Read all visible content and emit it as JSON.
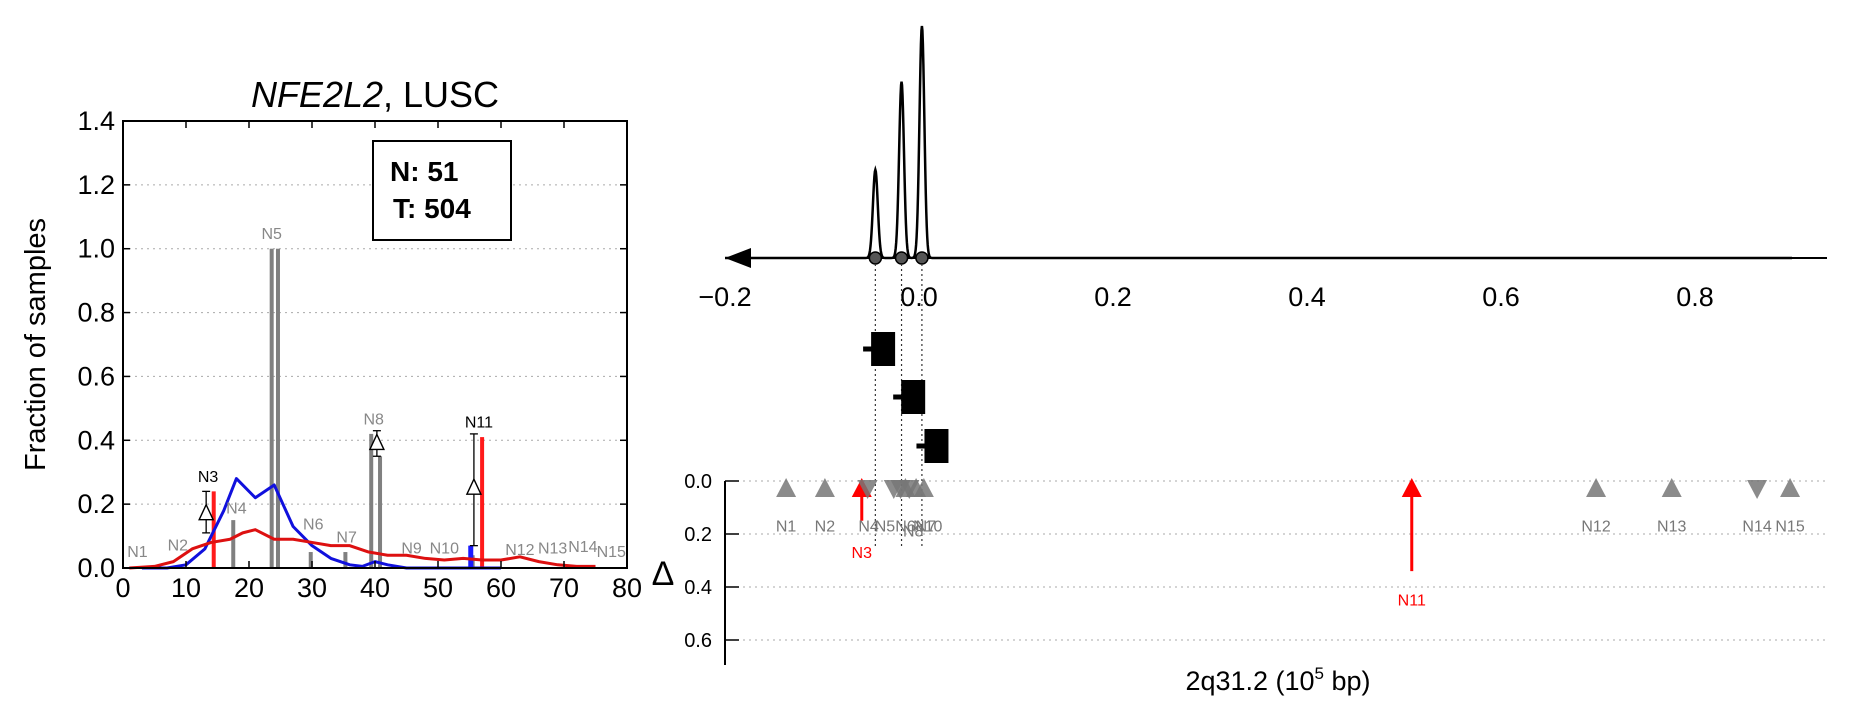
{
  "chart_data": [
    {
      "type": "bar",
      "title_italic": "NFE2L2",
      "title_rest": ", LUSC",
      "ylabel": "Fraction of samples",
      "xlabel": "",
      "xlim": [
        0,
        80
      ],
      "ylim": [
        0,
        1.4
      ],
      "xticks": [
        "0",
        "10",
        "20",
        "30",
        "40",
        "50",
        "60",
        "70",
        "80"
      ],
      "yticks": [
        "0.0",
        "0.2",
        "0.4",
        "0.6",
        "0.8",
        "1.0",
        "1.2",
        "1.4"
      ],
      "grid": "horizontal dotted",
      "legend_box": {
        "line1": "N: 51",
        "line2": "T: 504"
      },
      "bars": [
        {
          "x": 17.5,
          "value": 0.15
        },
        {
          "x": 23.6,
          "value": 1.0
        },
        {
          "x": 24.6,
          "value": 1.0
        },
        {
          "x": 29.8,
          "value": 0.05
        },
        {
          "x": 35.3,
          "value": 0.05
        },
        {
          "x": 39.4,
          "value": 0.42
        },
        {
          "x": 40.8,
          "value": 0.35
        },
        {
          "x": 55.5,
          "value": 0.04
        }
      ],
      "red_bars": [
        {
          "x": 14.4,
          "value": 0.24
        },
        {
          "x": 57.0,
          "value": 0.41
        }
      ],
      "blue_bars": [
        {
          "x": 55.2,
          "value": 0.07
        }
      ],
      "deltas": [
        {
          "x": 13.2,
          "y": 0.17,
          "err": [
            0.11,
            0.24
          ]
        },
        {
          "x": 40.3,
          "y": 0.39,
          "err": [
            0.35,
            0.43
          ]
        },
        {
          "x": 55.7,
          "y": 0.25,
          "err": [
            0.07,
            0.42
          ]
        }
      ],
      "node_labels": [
        {
          "text": "N1",
          "x": 2.3,
          "y": 0.035,
          "color": "#888888"
        },
        {
          "text": "N2",
          "x": 8.7,
          "y": 0.055,
          "color": "#888888"
        },
        {
          "text": "N3",
          "x": 13.5,
          "y": 0.27,
          "color": "#000000"
        },
        {
          "text": "N4",
          "x": 18.0,
          "y": 0.17,
          "color": "#888888"
        },
        {
          "text": "N5",
          "x": 23.6,
          "y": 1.03,
          "color": "#888888"
        },
        {
          "text": "N6",
          "x": 30.2,
          "y": 0.12,
          "color": "#888888"
        },
        {
          "text": "N7",
          "x": 35.5,
          "y": 0.08,
          "color": "#888888"
        },
        {
          "text": "N8",
          "x": 39.8,
          "y": 0.45,
          "color": "#888888"
        },
        {
          "text": "N9",
          "x": 45.8,
          "y": 0.045,
          "color": "#888888"
        },
        {
          "text": "N10",
          "x": 51.0,
          "y": 0.045,
          "color": "#888888"
        },
        {
          "text": "N11",
          "x": 56.5,
          "y": 0.44,
          "color": "#000000"
        },
        {
          "text": "N12",
          "x": 63.0,
          "y": 0.04,
          "color": "#888888"
        },
        {
          "text": "N13",
          "x": 68.2,
          "y": 0.045,
          "color": "#888888"
        },
        {
          "text": "N14",
          "x": 73.0,
          "y": 0.05,
          "color": "#888888"
        },
        {
          "text": "N15",
          "x": 77.5,
          "y": 0.035,
          "color": "#888888"
        }
      ],
      "series": [
        {
          "color": "#1010dd",
          "points": [
            [
              3,
              0
            ],
            [
              7,
              0
            ],
            [
              10,
              0.01
            ],
            [
              13,
              0.06
            ],
            [
              16,
              0.18
            ],
            [
              18,
              0.28
            ],
            [
              21,
              0.22
            ],
            [
              24,
              0.26
            ],
            [
              27,
              0.13
            ],
            [
              30,
              0.07
            ],
            [
              33,
              0.03
            ],
            [
              36,
              0.01
            ],
            [
              38,
              0.005
            ],
            [
              40,
              0.02
            ],
            [
              42,
              0.01
            ],
            [
              45,
              0
            ],
            [
              60,
              0
            ]
          ]
        },
        {
          "color": "#dd1010",
          "points": [
            [
              1,
              0
            ],
            [
              5,
              0.005
            ],
            [
              8,
              0.02
            ],
            [
              11,
              0.06
            ],
            [
              14,
              0.08
            ],
            [
              17,
              0.09
            ],
            [
              19,
              0.11
            ],
            [
              21,
              0.12
            ],
            [
              24,
              0.09
            ],
            [
              27,
              0.09
            ],
            [
              30,
              0.08
            ],
            [
              33,
              0.07
            ],
            [
              36,
              0.07
            ],
            [
              39,
              0.05
            ],
            [
              42,
              0.04
            ],
            [
              45,
              0.04
            ],
            [
              48,
              0.03
            ],
            [
              51,
              0.025
            ],
            [
              54,
              0.03
            ],
            [
              57,
              0.025
            ],
            [
              60,
              0.025
            ],
            [
              63,
              0.035
            ],
            [
              66,
              0.02
            ],
            [
              69,
              0.01
            ],
            [
              72,
              0.005
            ],
            [
              75,
              0.005
            ]
          ]
        }
      ]
    },
    {
      "type": "line",
      "xlabel_main": "2q31.2 (10",
      "xlabel_sup": "5",
      "xlabel_tail": " bp)",
      "ylabel": "Δ",
      "xlim": [
        -0.2,
        0.9
      ],
      "xticks": [
        {
          "value": -0.2,
          "label": "−0.2"
        },
        {
          "value": 0.0,
          "label": "0.0"
        },
        {
          "value": 0.2,
          "label": "0.2"
        },
        {
          "value": 0.4,
          "label": "0.4"
        },
        {
          "value": 0.6,
          "label": "0.6"
        },
        {
          "value": 0.8,
          "label": "0.8"
        }
      ],
      "density_peaks": [
        {
          "x": -0.045,
          "height": 0.38
        },
        {
          "x": -0.018,
          "height": 0.76
        },
        {
          "x": 0.003,
          "height": 1.0
        }
      ],
      "markers": [
        {
          "x": -0.037,
          "row": 1
        },
        {
          "x": -0.006,
          "row": 2
        },
        {
          "x": 0.018,
          "row": 3
        }
      ],
      "dyticks": [
        "0.0",
        "0.2",
        "0.4",
        "0.6"
      ],
      "dylim": [
        0,
        0.7
      ],
      "nodes": [
        {
          "text": "N1",
          "x": -0.137,
          "dir": "up",
          "color": "#777777"
        },
        {
          "text": "N2",
          "x": -0.097,
          "dir": "up",
          "color": "#777777"
        },
        {
          "text": "N3",
          "x": -0.059,
          "dir": "up",
          "color": "#ff0000",
          "arrow": 0.15
        },
        {
          "text": "N4",
          "x": -0.053,
          "dir": "down",
          "color": "#777777"
        },
        {
          "text": "N5",
          "x": -0.026,
          "dir": "down",
          "color": "#777777"
        },
        {
          "text": "N6",
          "x": -0.019,
          "dir": "down",
          "color": "#777777"
        },
        {
          "text": "N7",
          "x": -0.014,
          "dir": "up",
          "color": "#777777"
        },
        {
          "text": "N8",
          "x": -0.01,
          "dir": "down",
          "color": "#777777"
        },
        {
          "text": "N9",
          "x": -0.003,
          "dir": "up",
          "color": "#777777"
        },
        {
          "text": "N10",
          "x": 0.005,
          "dir": "up",
          "color": "#777777"
        },
        {
          "text": "N11",
          "x": 0.508,
          "dir": "up",
          "color": "#ff0000",
          "arrow": 0.34
        },
        {
          "text": "N12",
          "x": 0.698,
          "dir": "up",
          "color": "#777777"
        },
        {
          "text": "N13",
          "x": 0.776,
          "dir": "up",
          "color": "#777777"
        },
        {
          "text": "N14",
          "x": 0.864,
          "dir": "down",
          "color": "#777777"
        },
        {
          "text": "N15",
          "x": 0.898,
          "dir": "up",
          "color": "#777777"
        }
      ],
      "node_label_text": [
        {
          "text": "N1",
          "x": -0.137
        },
        {
          "text": "N2",
          "x": -0.097
        },
        {
          "text": "N4",
          "x": -0.052
        },
        {
          "text": "N5N6N7",
          "x": -0.014
        },
        {
          "text": "N8",
          "x": -0.006,
          "drop": true
        },
        {
          "text": "N10",
          "x": 0.009
        },
        {
          "text": "N12",
          "x": 0.698
        },
        {
          "text": "N13",
          "x": 0.776
        },
        {
          "text": "N14",
          "x": 0.864
        },
        {
          "text": "N15",
          "x": 0.898
        }
      ],
      "red_labels": [
        {
          "text": "N3",
          "x": -0.059,
          "y": 0.29
        },
        {
          "text": "N11",
          "x": 0.508,
          "y": 0.47
        }
      ]
    }
  ]
}
